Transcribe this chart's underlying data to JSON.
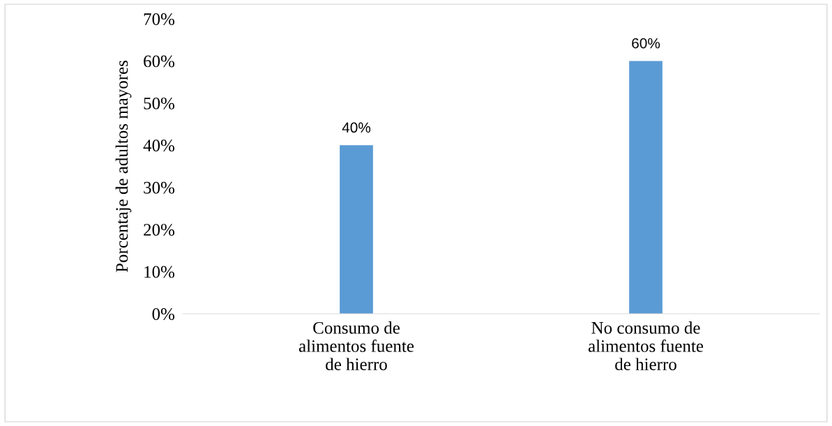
{
  "chart_data": {
    "type": "bar",
    "ylabel": "Porcentaje de adultos mayores",
    "categories": [
      "Consumo de\nalimentos fuente\nde hierro",
      "No consumo de\nalimentos fuente\nde hierro"
    ],
    "values": [
      40,
      60
    ],
    "color": "#5b9bd5",
    "ylim": [
      0,
      70
    ],
    "yticks": [
      {
        "value": 0,
        "label": "0%"
      },
      {
        "value": 10,
        "label": "10%"
      },
      {
        "value": 20,
        "label": "20%"
      },
      {
        "value": 30,
        "label": "30%"
      },
      {
        "value": 40,
        "label": "40%"
      },
      {
        "value": 50,
        "label": "50%"
      },
      {
        "value": 60,
        "label": "60%"
      },
      {
        "value": 70,
        "label": "70%"
      }
    ],
    "value_labels": [
      "40%",
      "60%"
    ],
    "grid": false,
    "legend": false
  }
}
